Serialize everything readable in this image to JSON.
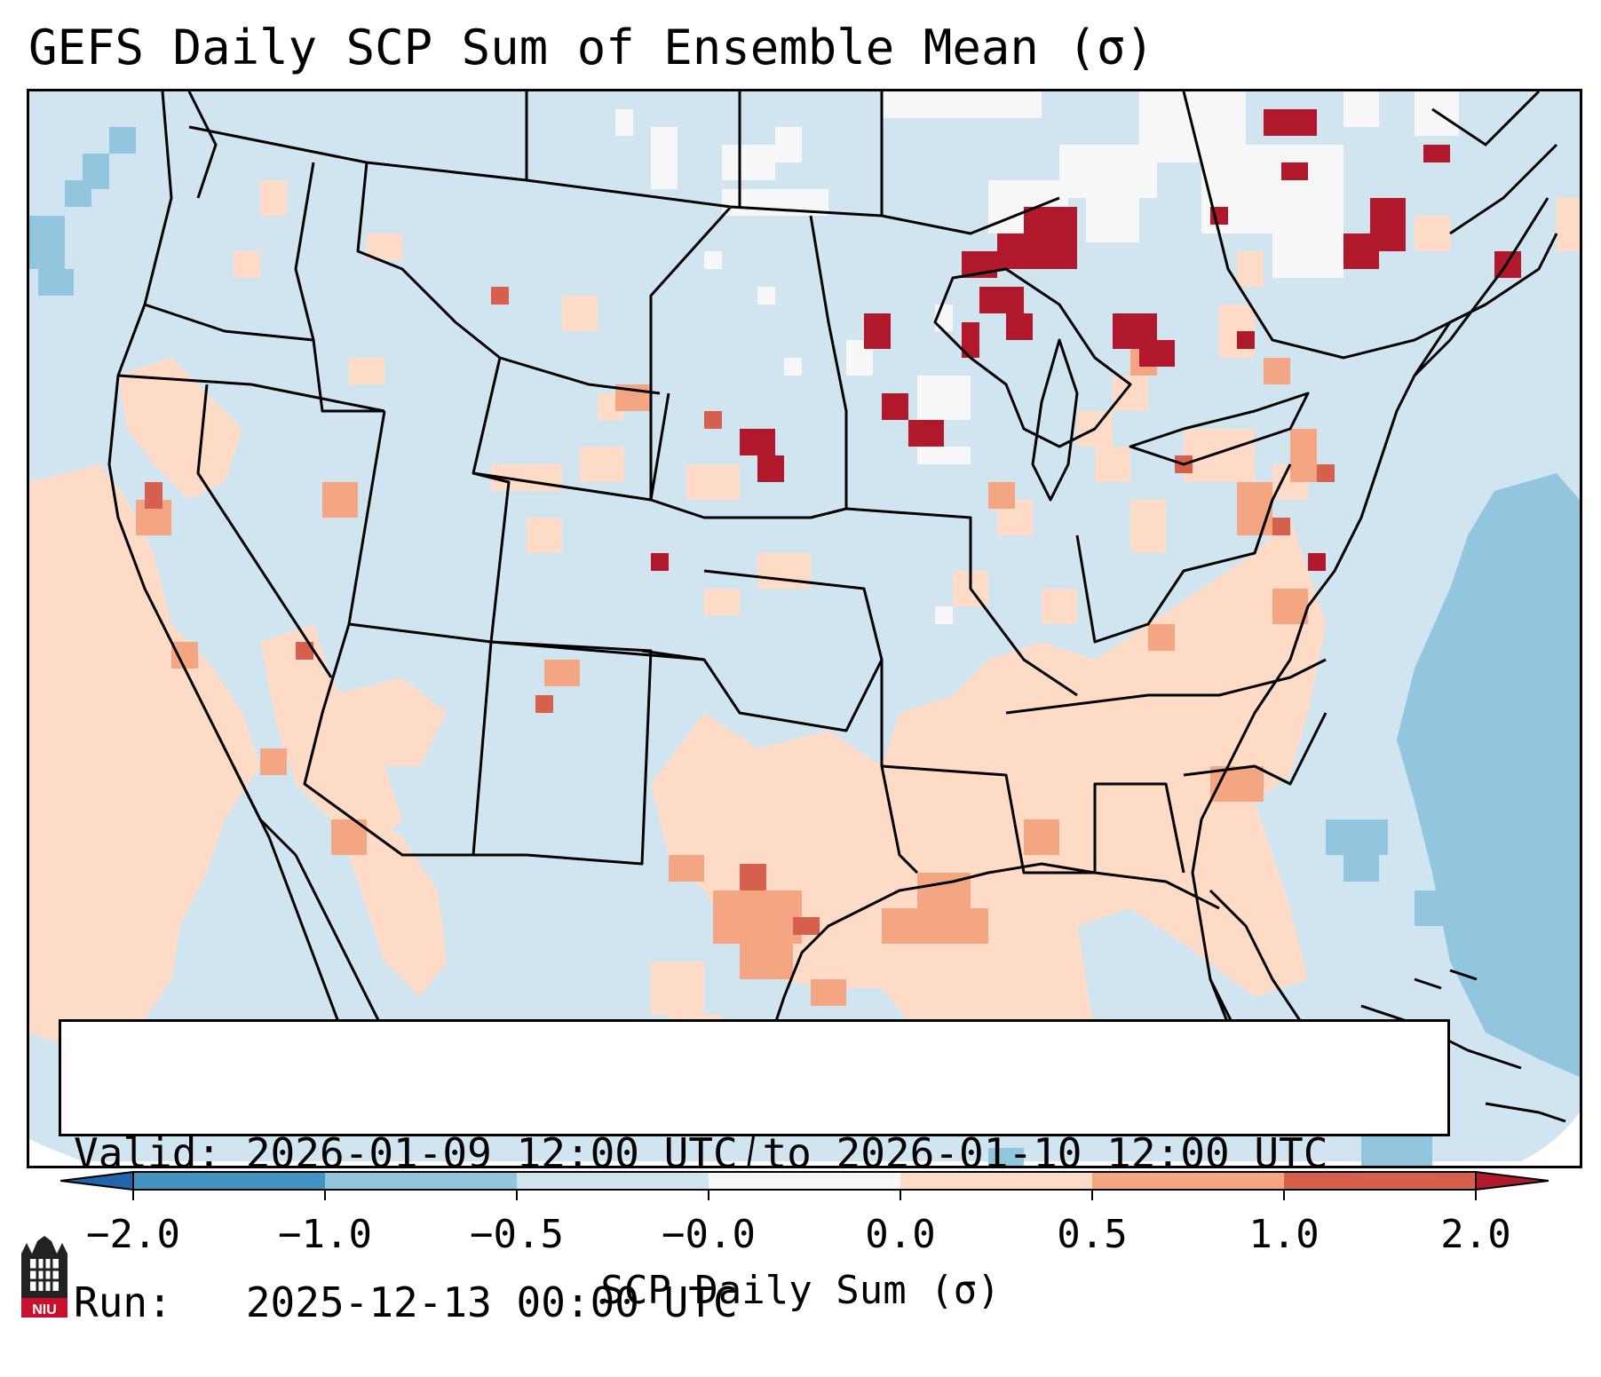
{
  "title": "GEFS Daily SCP Sum of Ensemble Mean (σ)",
  "info": {
    "valid_line": "Valid: 2026-01-09 12:00 UTC to 2026-01-10 12:00 UTC",
    "run_line": "Run:   2025-12-13 00:00 UTC"
  },
  "colorbar": {
    "label": "SCP Daily Sum (σ)",
    "ticks": [
      "−2.0",
      "−1.0",
      "−0.5",
      "−0.0",
      "0.0",
      "0.5",
      "1.0",
      "2.0"
    ],
    "bins": [
      {
        "range": "<-2.0",
        "color": "#2166ac"
      },
      {
        "range": "-2.0 to -1.0",
        "color": "#4393c3"
      },
      {
        "range": "-1.0 to -0.5",
        "color": "#92c5de"
      },
      {
        "range": "-0.5 to -0.0",
        "color": "#d1e5f0"
      },
      {
        "range": "-0.0 to 0.0",
        "color": "#f7f7f7"
      },
      {
        "range": "0.0 to 0.5",
        "color": "#fddbc7"
      },
      {
        "range": "0.5 to 1.0",
        "color": "#f4a582"
      },
      {
        "range": "1.0 to 2.0",
        "color": "#d6604d"
      },
      {
        "range": ">2.0",
        "color": "#b2182b"
      }
    ]
  },
  "logo": {
    "text": "NIU",
    "icon": "niu-castle-logo"
  },
  "map": {
    "background_color": "#d1e5f0",
    "ocean_low_color": "#92c5de",
    "border_color": "#000000"
  }
}
